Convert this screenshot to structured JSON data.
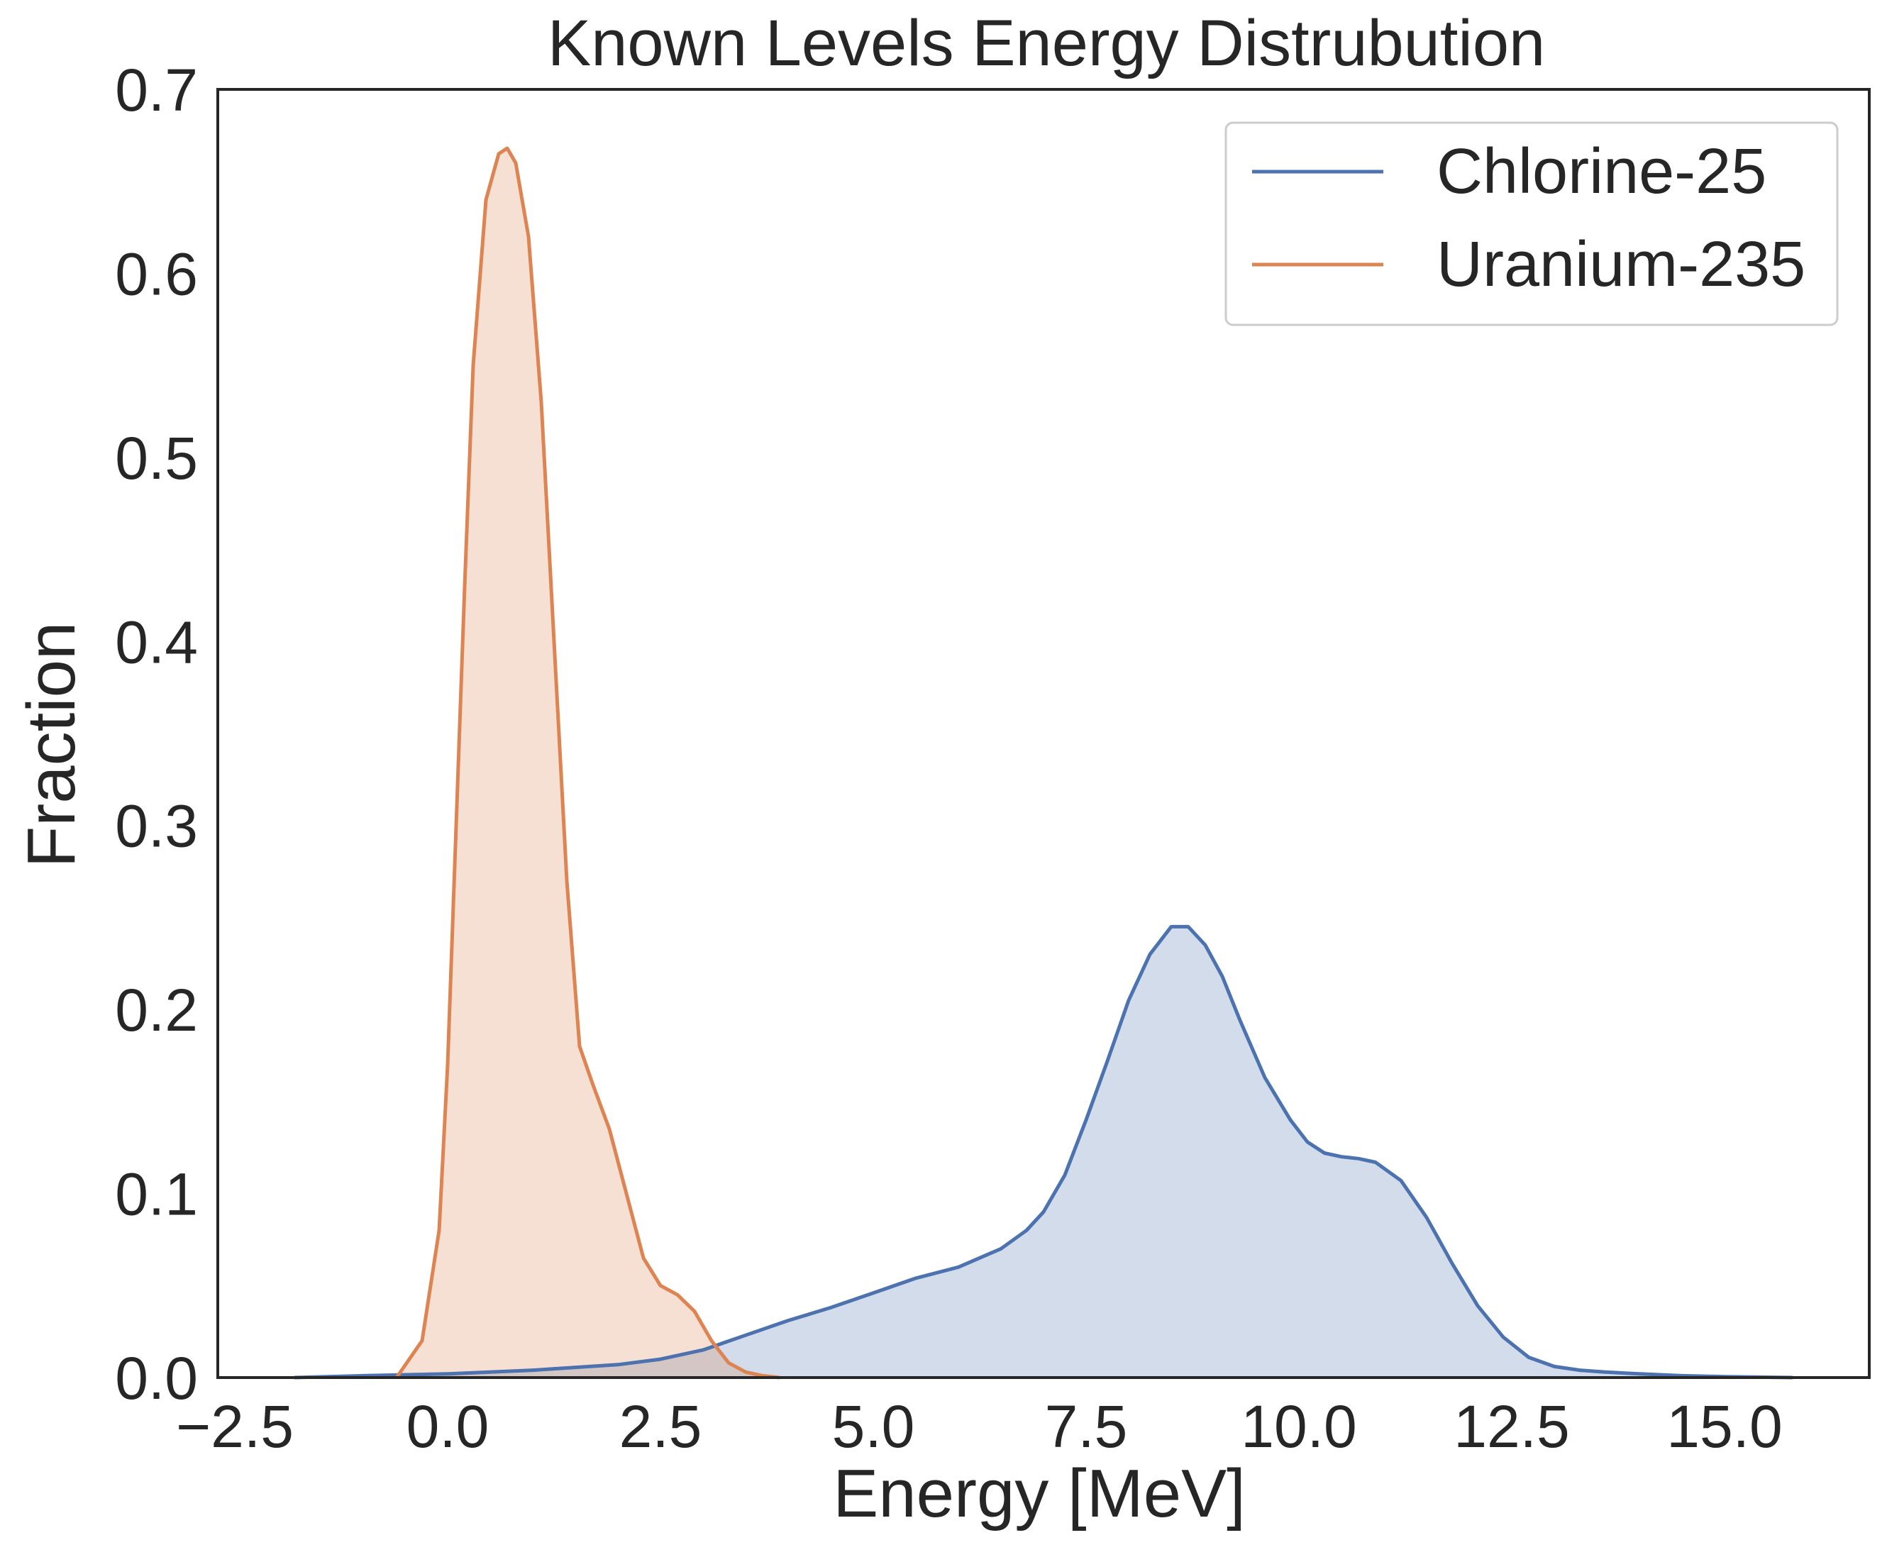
{
  "chart_data": {
    "type": "area",
    "title": "Known Levels Energy Distrubution",
    "xlabel": "Energy [MeV]",
    "ylabel": "Fraction",
    "xlim": [
      -2.7,
      16.7
    ],
    "ylim": [
      0,
      0.7
    ],
    "xticks": [
      -2.5,
      0.0,
      2.5,
      5.0,
      7.5,
      10.0,
      12.5,
      15.0
    ],
    "xtick_labels": [
      "−2.5",
      "0.0",
      "2.5",
      "5.0",
      "7.5",
      "10.0",
      "12.5",
      "15.0"
    ],
    "yticks": [
      0.0,
      0.1,
      0.2,
      0.3,
      0.4,
      0.5,
      0.6,
      0.7
    ],
    "ytick_labels": [
      "0.0",
      "0.1",
      "0.2",
      "0.3",
      "0.4",
      "0.5",
      "0.6",
      "0.7"
    ],
    "grid": false,
    "legend_position": "top-right",
    "series": [
      {
        "name": "Chlorine-25",
        "color": "#4c72b0",
        "fill_opacity": 0.25,
        "x": [
          -1.8,
          -1.0,
          0.0,
          1.0,
          2.0,
          2.5,
          3.0,
          3.5,
          4.0,
          4.5,
          5.0,
          5.5,
          6.0,
          6.5,
          6.8,
          7.0,
          7.25,
          7.5,
          7.75,
          8.0,
          8.25,
          8.5,
          8.7,
          8.9,
          9.1,
          9.3,
          9.6,
          9.9,
          10.1,
          10.3,
          10.5,
          10.7,
          10.9,
          11.2,
          11.5,
          11.8,
          12.1,
          12.4,
          12.7,
          13.0,
          13.3,
          13.6,
          14.0,
          14.5,
          15.0,
          15.8
        ],
        "y": [
          0.0,
          0.001,
          0.002,
          0.004,
          0.007,
          0.01,
          0.015,
          0.023,
          0.031,
          0.038,
          0.046,
          0.054,
          0.06,
          0.07,
          0.08,
          0.09,
          0.11,
          0.14,
          0.172,
          0.205,
          0.23,
          0.245,
          0.245,
          0.235,
          0.218,
          0.195,
          0.163,
          0.14,
          0.128,
          0.122,
          0.12,
          0.119,
          0.117,
          0.107,
          0.087,
          0.062,
          0.039,
          0.022,
          0.011,
          0.006,
          0.004,
          0.003,
          0.002,
          0.001,
          0.0005,
          0.0
        ],
        "label_color": "#262626"
      },
      {
        "name": "Uranium-235",
        "color": "#dd8452",
        "fill_opacity": 0.25,
        "x": [
          -0.6,
          -0.3,
          -0.1,
          0.0,
          0.1,
          0.2,
          0.3,
          0.45,
          0.6,
          0.7,
          0.8,
          0.95,
          1.1,
          1.25,
          1.4,
          1.55,
          1.7,
          1.9,
          2.1,
          2.3,
          2.5,
          2.7,
          2.9,
          3.1,
          3.3,
          3.5,
          3.7,
          3.9
        ],
        "y": [
          0.0,
          0.02,
          0.08,
          0.17,
          0.3,
          0.43,
          0.55,
          0.64,
          0.665,
          0.668,
          0.66,
          0.62,
          0.53,
          0.4,
          0.27,
          0.18,
          0.16,
          0.135,
          0.1,
          0.065,
          0.05,
          0.045,
          0.036,
          0.02,
          0.008,
          0.003,
          0.001,
          0.0
        ]
      }
    ]
  },
  "style": {
    "text_color": "#262626",
    "axis_color": "#262626",
    "legend_border": "#cccccc"
  }
}
